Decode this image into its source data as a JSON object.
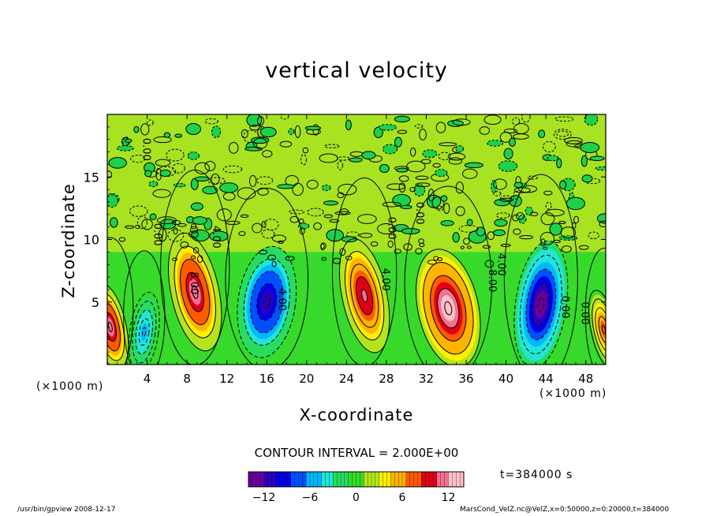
{
  "chart_data": {
    "type": "heatmap",
    "title": "vertical velocity",
    "xlabel": "X-coordinate",
    "ylabel": "Z-coordinate",
    "x_unit": "(×1000 m)",
    "xlim": [
      0,
      50
    ],
    "ylim": [
      0,
      20
    ],
    "x_ticks": [
      4,
      8,
      12,
      16,
      20,
      24,
      28,
      32,
      36,
      40,
      44,
      48
    ],
    "y_ticks": [
      5,
      10,
      15
    ],
    "contour_interval_text": "CONTOUR INTERVAL = 2.000E+00",
    "colorbar": {
      "range": [
        -14,
        14
      ],
      "ticks": [
        -12,
        -6,
        0,
        6,
        12
      ],
      "tick_labels": [
        "−12",
        "−6",
        "0",
        "6",
        "12"
      ]
    },
    "contour_labels": [
      {
        "x": 4.7,
        "y": 10.4,
        "text": "0.00"
      },
      {
        "x": 10.6,
        "y": 10.2,
        "text": "4.00"
      },
      {
        "x": 8.4,
        "y": 6.5,
        "text": "8.00"
      },
      {
        "x": 17.2,
        "y": 5.2,
        "text": "4.00"
      },
      {
        "x": 27.6,
        "y": 6.8,
        "text": "4.00"
      },
      {
        "x": 28.2,
        "y": 10.9,
        "text": "0.00"
      },
      {
        "x": 31.0,
        "y": 12.1,
        "text": "0.00"
      },
      {
        "x": 38.3,
        "y": 6.7,
        "text": "8.00"
      },
      {
        "x": 39.2,
        "y": 8.0,
        "text": "4.00"
      },
      {
        "x": 45.6,
        "y": 4.6,
        "text": "0.00"
      },
      {
        "x": 47.6,
        "y": 4.1,
        "text": "0.00"
      },
      {
        "x": 3.6,
        "y": 17.2,
        "text": "0.00"
      }
    ],
    "cells": [
      {
        "x": 0.3,
        "z": 3.0,
        "sx": 1.0,
        "sz": 2.2,
        "amp": 12
      },
      {
        "x": 3.7,
        "z": 2.6,
        "sx": 0.9,
        "sz": 2.0,
        "amp": -6
      },
      {
        "x": 8.8,
        "z": 5.8,
        "sx": 1.5,
        "sz": 3.0,
        "amp": 12
      },
      {
        "x": 16.0,
        "z": 5.0,
        "sx": 1.8,
        "sz": 2.8,
        "amp": -12
      },
      {
        "x": 25.8,
        "z": 5.5,
        "sx": 1.4,
        "sz": 2.9,
        "amp": 11
      },
      {
        "x": 34.2,
        "z": 4.5,
        "sx": 1.9,
        "sz": 3.0,
        "amp": 14
      },
      {
        "x": 43.5,
        "z": 4.8,
        "sx": 1.6,
        "sz": 3.2,
        "amp": -14
      },
      {
        "x": 49.8,
        "z": 2.8,
        "sx": 0.8,
        "sz": 2.0,
        "amp": 8
      }
    ]
  },
  "time_label": "t=384000 s",
  "footer": {
    "left": "/usr/bin/gpview 2008-12-17",
    "right": "MarsCond_VelZ.nc@VelZ,x=0:50000,z=0:20000,t=384000"
  },
  "colors": {
    "colormap": [
      "#6a009c",
      "#2a00c0",
      "#0000e8",
      "#0050ff",
      "#00b8ff",
      "#20e6d8",
      "#28dc60",
      "#36da28",
      "#b4e41e",
      "#fff000",
      "#ffb400",
      "#ff5a00",
      "#e00018",
      "#f27090",
      "#ffc0c8"
    ]
  }
}
